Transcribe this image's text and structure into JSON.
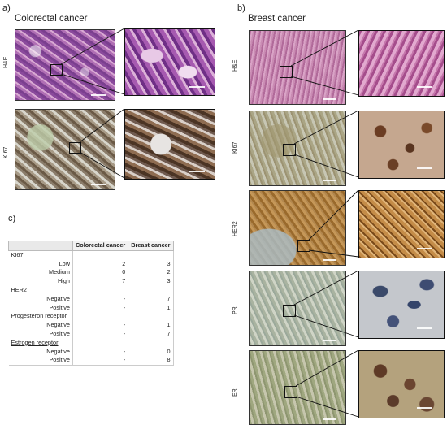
{
  "panels": {
    "a": {
      "letter": "a)",
      "title": "Colorectal cancer",
      "rows": [
        "H&E",
        "KI67"
      ]
    },
    "b": {
      "letter": "b)",
      "title": "Breast cancer",
      "rows": [
        "H&E",
        "KI67",
        "HER2",
        "PR",
        "ER"
      ]
    },
    "c": {
      "letter": "c)"
    }
  },
  "table": {
    "headers": [
      "",
      "Colorectal cancer",
      "Breast cancer"
    ],
    "groups": [
      {
        "name": "KI67",
        "rows": [
          {
            "label": "Low",
            "crc": "2",
            "bc": "3"
          },
          {
            "label": "Medium",
            "crc": "0",
            "bc": "2"
          },
          {
            "label": "High",
            "crc": "7",
            "bc": "3"
          }
        ]
      },
      {
        "name": "HER2",
        "rows": [
          {
            "label": "Negative",
            "crc": "-",
            "bc": "7"
          },
          {
            "label": "Positive",
            "crc": "-",
            "bc": "1"
          }
        ]
      },
      {
        "name": "Progesteron receptor",
        "rows": [
          {
            "label": "Negative",
            "crc": "-",
            "bc": "1"
          },
          {
            "label": "Positive",
            "crc": "-",
            "bc": "7"
          }
        ]
      },
      {
        "name": "Estrogen receptor",
        "rows": [
          {
            "label": "Negative",
            "crc": "-",
            "bc": "0"
          },
          {
            "label": "Positive",
            "crc": "-",
            "bc": "8"
          }
        ]
      }
    ]
  }
}
